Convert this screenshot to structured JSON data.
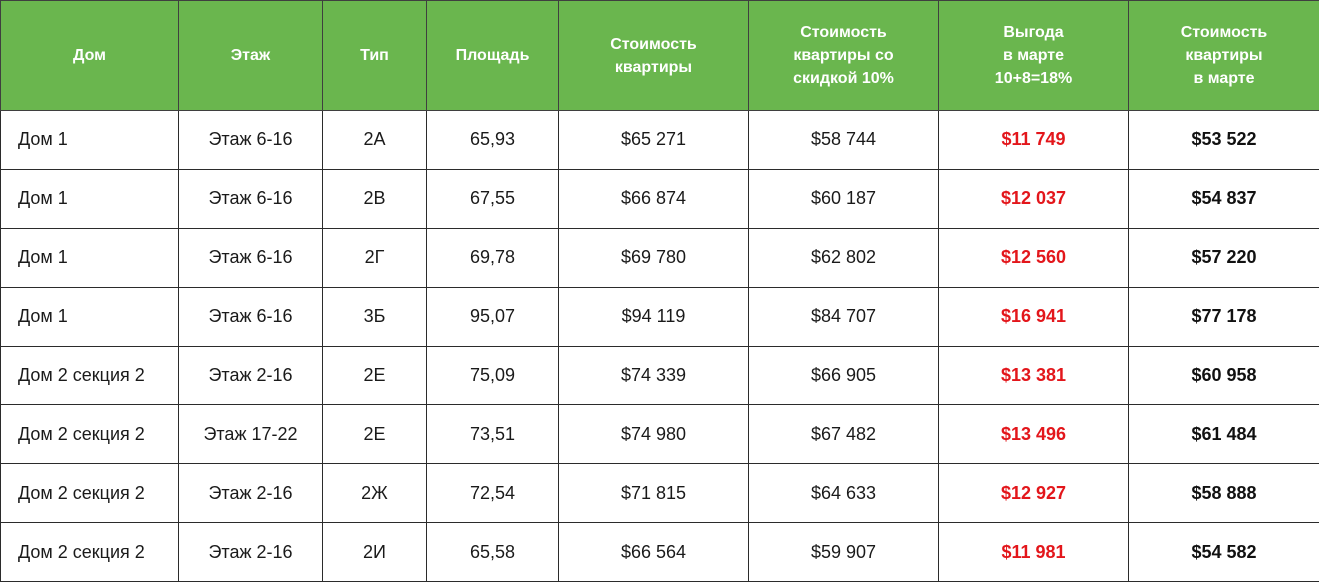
{
  "table": {
    "headers": [
      "Дом",
      "Этаж",
      "Тип",
      "Площадь",
      "Стоимость\nквартиры",
      "Стоимость\nквартиры со\nскидкой 10%",
      "Выгода\nв марте\n10+8=18%",
      "Стоимость\nквартиры\nв марте"
    ],
    "rows": [
      [
        "Дом 1",
        "Этаж 6-16",
        "2А",
        "65,93",
        "$65 271",
        "$58 744",
        "$11 749",
        "$53 522"
      ],
      [
        "Дом 1",
        "Этаж 6-16",
        "2В",
        "67,55",
        "$66 874",
        "$60 187",
        "$12 037",
        "$54 837"
      ],
      [
        "Дом 1",
        "Этаж 6-16",
        "2Г",
        "69,78",
        "$69 780",
        "$62 802",
        "$12 560",
        "$57 220"
      ],
      [
        "Дом 1",
        "Этаж 6-16",
        "3Б",
        "95,07",
        "$94 119",
        "$84 707",
        "$16 941",
        "$77 178"
      ],
      [
        "Дом 2 секция 2",
        "Этаж 2-16",
        "2Е",
        "75,09",
        "$74 339",
        "$66 905",
        "$13 381",
        "$60 958"
      ],
      [
        "Дом 2 секция 2",
        "Этаж 17-22",
        "2Е",
        "73,51",
        "$74 980",
        "$67 482",
        "$13 496",
        "$61 484"
      ],
      [
        "Дом 2 секция 2",
        "Этаж 2-16",
        "2Ж",
        "72,54",
        "$71 815",
        "$64 633",
        "$12 927",
        "$58 888"
      ],
      [
        "Дом 2 секция 2",
        "Этаж 2-16",
        "2И",
        "65,58",
        "$66 564",
        "$59 907",
        "$11 981",
        "$54 582"
      ]
    ]
  },
  "colors": {
    "header_bg": "#6ab64e",
    "header_text": "#ffffff",
    "benefit_text": "#e3161b",
    "body_text": "#1a1a1a",
    "border": "#2b2b2b"
  }
}
